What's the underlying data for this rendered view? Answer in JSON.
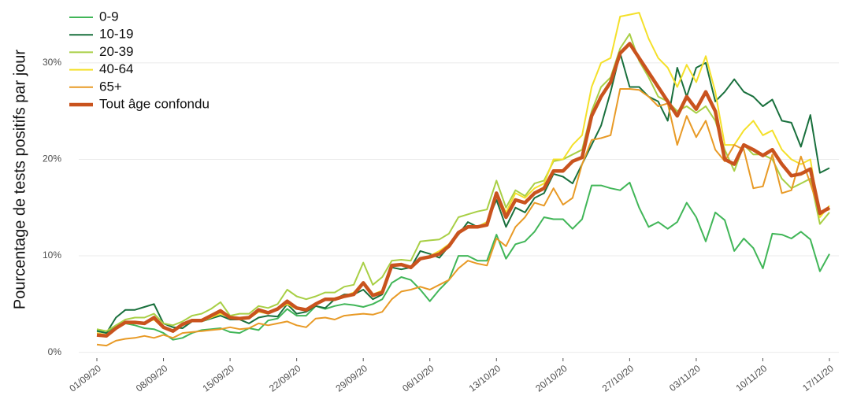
{
  "chart_data": {
    "type": "line",
    "ylabel": "Pourcentage de tests positifs par jour",
    "x": [
      "01/09/20",
      "02/09/20",
      "03/09/20",
      "04/09/20",
      "05/09/20",
      "06/09/20",
      "07/09/20",
      "08/09/20",
      "09/09/20",
      "10/09/20",
      "11/09/20",
      "12/09/20",
      "13/09/20",
      "14/09/20",
      "15/09/20",
      "16/09/20",
      "17/09/20",
      "18/09/20",
      "19/09/20",
      "20/09/20",
      "21/09/20",
      "22/09/20",
      "23/09/20",
      "24/09/20",
      "25/09/20",
      "26/09/20",
      "27/09/20",
      "28/09/20",
      "29/09/20",
      "30/09/20",
      "01/10/20",
      "02/10/20",
      "03/10/20",
      "04/10/20",
      "05/10/20",
      "06/10/20",
      "07/10/20",
      "08/10/20",
      "09/10/20",
      "10/10/20",
      "11/10/20",
      "12/10/20",
      "13/10/20",
      "14/10/20",
      "15/10/20",
      "16/10/20",
      "17/10/20",
      "18/10/20",
      "19/10/20",
      "20/10/20",
      "21/10/20",
      "22/10/20",
      "23/10/20",
      "24/10/20",
      "25/10/20",
      "26/10/20",
      "27/10/20",
      "28/10/20",
      "29/10/20",
      "30/10/20",
      "31/10/20",
      "01/11/20",
      "02/11/20",
      "03/11/20",
      "04/11/20",
      "05/11/20",
      "06/11/20",
      "07/11/20",
      "08/11/20",
      "09/11/20",
      "10/11/20",
      "11/11/20",
      "12/11/20",
      "13/11/20",
      "14/11/20",
      "15/11/20",
      "16/11/20",
      "17/11/20"
    ],
    "xticks": [
      "01/09/20",
      "08/09/20",
      "15/09/20",
      "22/09/20",
      "29/09/20",
      "06/10/20",
      "13/10/20",
      "20/10/20",
      "27/10/20",
      "03/11/20",
      "10/11/20",
      "17/11/20"
    ],
    "ylim": [
      -0.6,
      35.7
    ],
    "yticks": [
      {
        "value": 0,
        "label": "0%"
      },
      {
        "value": 10,
        "label": "10%"
      },
      {
        "value": 20,
        "label": "20%"
      },
      {
        "value": 30,
        "label": "30%"
      }
    ],
    "grid": true,
    "legend": "top-left",
    "series": [
      {
        "name": "0-9",
        "color": "#41b658",
        "width": 2,
        "values": [
          2.3,
          2.0,
          2.8,
          3.0,
          2.8,
          2.5,
          2.4,
          2.0,
          1.3,
          1.5,
          2.0,
          2.3,
          2.4,
          2.5,
          2.1,
          2.0,
          2.5,
          2.3,
          3.3,
          3.5,
          4.5,
          3.8,
          3.8,
          4.8,
          4.5,
          4.8,
          5.0,
          4.9,
          4.7,
          5.0,
          5.5,
          7.2,
          7.8,
          7.5,
          6.5,
          5.3,
          6.5,
          7.5,
          10.0,
          10.0,
          9.5,
          9.5,
          12.2,
          9.7,
          11.2,
          11.5,
          12.5,
          14.0,
          13.8,
          13.8,
          12.8,
          13.8,
          17.3,
          17.3,
          17.0,
          16.8,
          17.6,
          15.0,
          13.0,
          13.5,
          12.8,
          13.5,
          15.5,
          14.0,
          11.5,
          14.5,
          13.7,
          10.5,
          11.8,
          10.8,
          8.7,
          12.3,
          12.2,
          11.8,
          12.5,
          11.7,
          8.4,
          10.2
        ]
      },
      {
        "name": "10-19",
        "color": "#19703d",
        "width": 2,
        "values": [
          2.2,
          2.0,
          3.6,
          4.4,
          4.4,
          4.7,
          5.0,
          3.0,
          2.6,
          2.5,
          3.2,
          3.2,
          3.5,
          3.8,
          3.4,
          3.4,
          3.0,
          3.6,
          3.8,
          3.7,
          5.0,
          4.0,
          4.2,
          4.8,
          4.6,
          5.5,
          6.0,
          6.0,
          6.5,
          5.5,
          6.0,
          8.8,
          8.6,
          8.8,
          10.5,
          10.2,
          9.8,
          11.0,
          12.2,
          13.5,
          13.0,
          13.5,
          15.8,
          13.0,
          15.0,
          14.5,
          16.0,
          16.5,
          18.5,
          18.2,
          17.5,
          19.5,
          21.5,
          23.5,
          27.0,
          31.0,
          27.5,
          27.5,
          26.5,
          26.0,
          24.0,
          29.5,
          26.5,
          29.5,
          30.0,
          26.0,
          27.0,
          28.3,
          27.0,
          26.5,
          25.5,
          26.2,
          24.0,
          23.8,
          21.3,
          24.6,
          18.6,
          19.1
        ]
      },
      {
        "name": "20-39",
        "color": "#a8cf45",
        "width": 2,
        "values": [
          2.4,
          2.2,
          2.8,
          3.4,
          3.6,
          3.6,
          4.0,
          3.0,
          2.8,
          3.2,
          3.8,
          4.0,
          4.5,
          5.2,
          3.8,
          4.0,
          4.0,
          4.8,
          4.6,
          5.0,
          6.5,
          5.8,
          5.5,
          5.8,
          6.2,
          6.2,
          6.8,
          7.0,
          9.3,
          7.0,
          7.8,
          9.5,
          9.6,
          9.5,
          11.5,
          11.6,
          11.7,
          12.3,
          14.0,
          14.3,
          14.6,
          14.8,
          17.8,
          15.0,
          16.8,
          16.2,
          17.5,
          17.8,
          19.8,
          20.0,
          20.5,
          21.0,
          25.0,
          27.5,
          28.5,
          31.5,
          33.0,
          30.2,
          28.5,
          26.5,
          26.0,
          25.0,
          25.5,
          24.8,
          25.5,
          24.0,
          21.0,
          18.8,
          21.5,
          20.5,
          20.5,
          20.0,
          18.0,
          17.0,
          17.5,
          18.0,
          13.3,
          14.5
        ]
      },
      {
        "name": "40-64",
        "color": "#f4e02a",
        "width": 2,
        "values": [
          2.0,
          1.8,
          2.4,
          3.0,
          3.0,
          3.0,
          3.4,
          2.5,
          2.2,
          2.8,
          3.2,
          3.2,
          3.6,
          4.0,
          3.6,
          3.4,
          3.5,
          4.2,
          4.0,
          4.5,
          5.0,
          4.5,
          4.4,
          5.0,
          5.5,
          5.6,
          5.8,
          6.2,
          7.2,
          6.0,
          6.4,
          9.0,
          9.2,
          8.8,
          9.7,
          10.0,
          10.5,
          11.2,
          12.5,
          13.0,
          13.0,
          13.5,
          16.5,
          14.5,
          16.5,
          16.0,
          17.0,
          17.5,
          20.0,
          20.0,
          21.5,
          22.5,
          27.5,
          30.0,
          30.5,
          34.8,
          35.0,
          35.2,
          32.5,
          30.5,
          29.5,
          27.5,
          29.8,
          28.0,
          30.7,
          27.0,
          21.5,
          21.5,
          23.0,
          24.0,
          22.5,
          23.0,
          21.0,
          20.0,
          19.5,
          20.0,
          14.0,
          15.2
        ]
      },
      {
        "name": "65+",
        "color": "#e89a26",
        "width": 2,
        "values": [
          0.8,
          0.7,
          1.2,
          1.4,
          1.5,
          1.7,
          1.5,
          1.8,
          1.5,
          2.0,
          2.1,
          2.2,
          2.3,
          2.4,
          2.6,
          2.4,
          2.5,
          3.0,
          2.8,
          3.0,
          3.2,
          2.8,
          2.6,
          3.5,
          3.6,
          3.4,
          3.8,
          3.9,
          4.0,
          3.9,
          4.2,
          5.5,
          6.3,
          6.5,
          6.8,
          6.5,
          7.0,
          7.5,
          8.7,
          9.5,
          9.2,
          9.0,
          11.8,
          11.0,
          13.0,
          14.0,
          15.5,
          15.2,
          17.0,
          15.3,
          16.0,
          19.5,
          22.0,
          22.2,
          22.5,
          27.3,
          27.3,
          27.2,
          26.5,
          25.5,
          25.8,
          21.5,
          24.5,
          22.3,
          24.0,
          21.0,
          19.8,
          21.5,
          21.0,
          17.0,
          17.2,
          20.5,
          16.5,
          16.8,
          20.3,
          17.5,
          14.5,
          14.8
        ]
      },
      {
        "name": "Tout âge confondu",
        "color": "#c9531e",
        "width": 4.5,
        "values": [
          1.8,
          1.7,
          2.5,
          3.1,
          3.1,
          3.0,
          3.6,
          2.6,
          2.2,
          2.9,
          3.3,
          3.3,
          3.8,
          4.3,
          3.6,
          3.5,
          3.6,
          4.4,
          4.1,
          4.5,
          5.3,
          4.6,
          4.4,
          5.0,
          5.5,
          5.5,
          5.8,
          6.0,
          7.2,
          5.9,
          6.2,
          9.0,
          9.1,
          8.8,
          9.7,
          9.9,
          10.2,
          11.0,
          12.4,
          13.0,
          13.0,
          13.2,
          16.5,
          14.0,
          15.8,
          15.5,
          16.5,
          17.0,
          18.8,
          18.8,
          19.8,
          20.2,
          24.5,
          26.5,
          28.0,
          31.0,
          32.0,
          30.5,
          29.0,
          27.5,
          26.0,
          24.5,
          26.5,
          25.2,
          27.0,
          25.0,
          20.0,
          19.5,
          21.5,
          21.0,
          20.4,
          21.0,
          19.5,
          18.3,
          18.5,
          19.0,
          14.4,
          15.0
        ]
      }
    ]
  }
}
